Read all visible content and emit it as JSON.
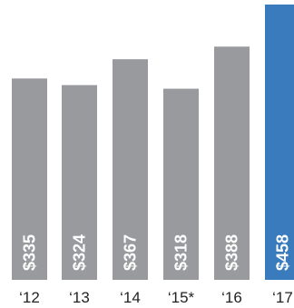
{
  "chart_data": {
    "type": "bar",
    "categories": [
      "‘12",
      "‘13",
      "‘14",
      "‘15*",
      "‘16",
      "‘17"
    ],
    "values": [
      335,
      324,
      367,
      318,
      388,
      458
    ],
    "data_labels": [
      "$335",
      "$324",
      "$367",
      "$318",
      "$388",
      "$458"
    ],
    "highlight_index": 5,
    "title": "",
    "xlabel": "",
    "ylabel": "",
    "ylim": [
      0,
      460
    ],
    "grid": false,
    "legend": "none"
  },
  "colors": {
    "bar": "#999a9e",
    "highlight": "#3a7bbd",
    "label": "#ffffff",
    "tick": "#222222",
    "background": "#ffffff"
  }
}
